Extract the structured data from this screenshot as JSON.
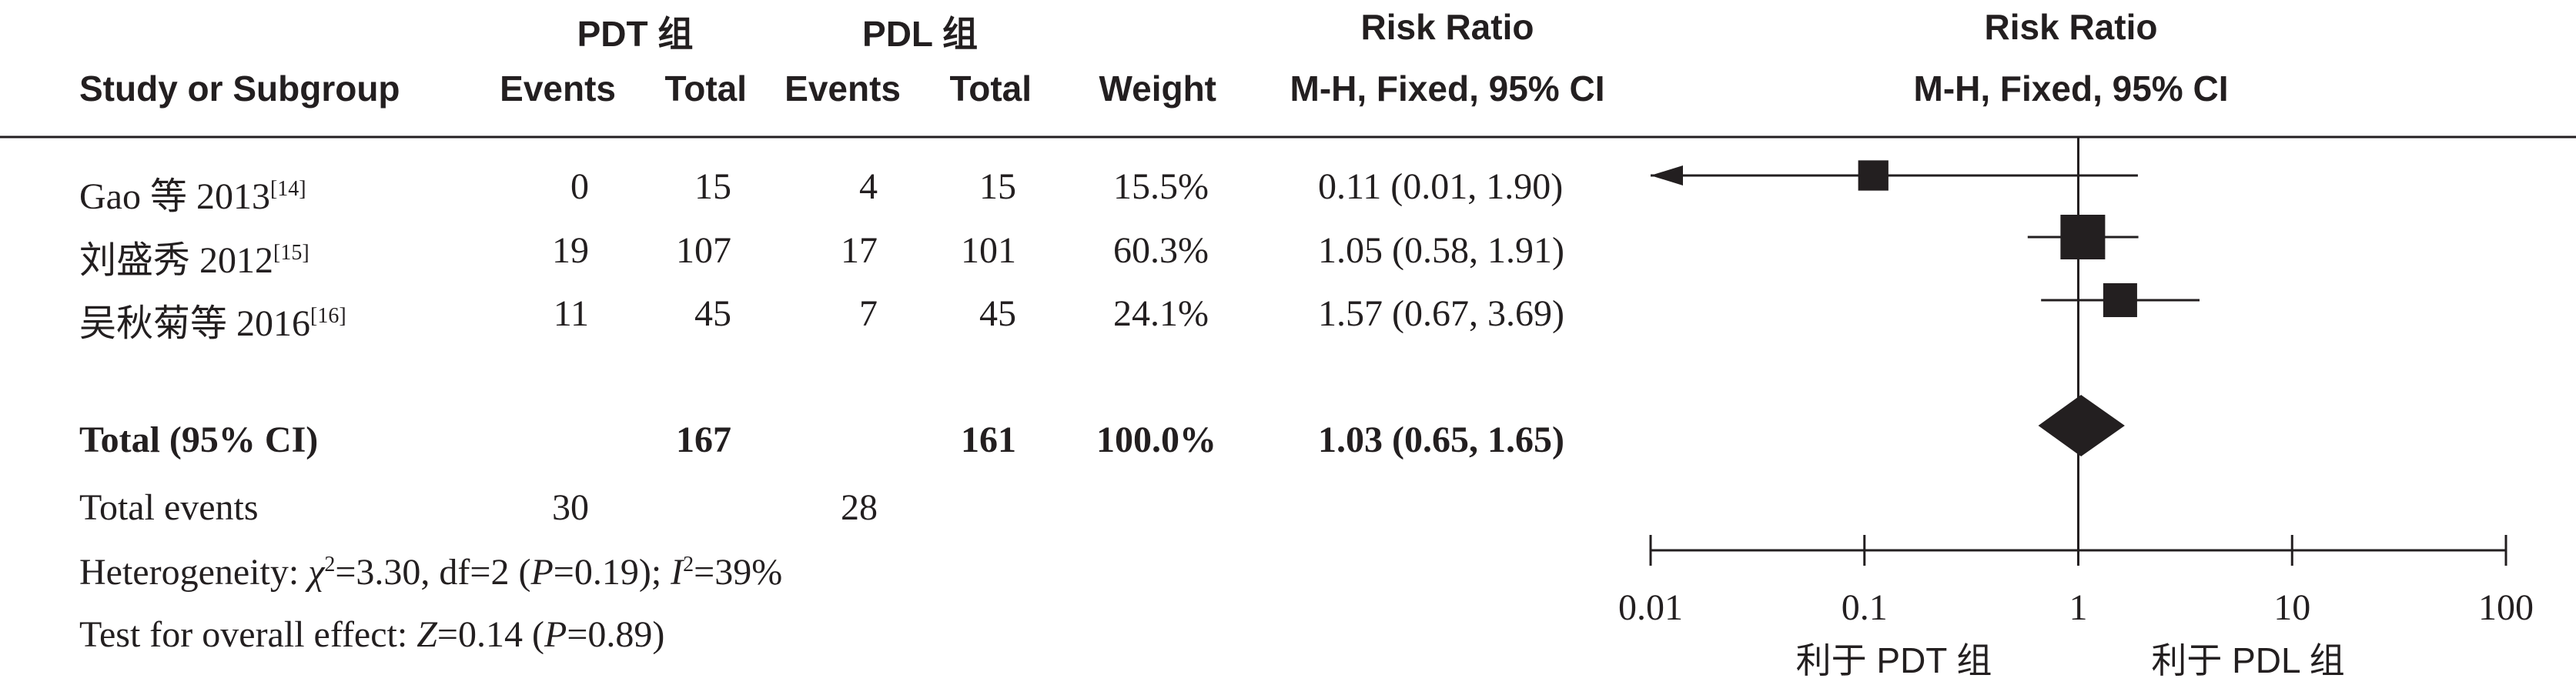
{
  "header": {
    "group1": "PDT 组",
    "group2": "PDL 组",
    "col_study": "Study or Subgroup",
    "col_events": "Events",
    "col_total": "Total",
    "col_weight": "Weight",
    "col_rr_title": "Risk Ratio",
    "col_rr_method": "M-H, Fixed, 95% CI",
    "plot_title": "Risk Ratio",
    "plot_method": "M-H, Fixed, 95% CI"
  },
  "studies": [
    {
      "name": "Gao 等 2013",
      "ref": "[14]",
      "e1": "0",
      "t1": "15",
      "e2": "4",
      "t2": "15",
      "weight": "15.5%",
      "ci": "0.11 (0.01, 1.90)"
    },
    {
      "name": "刘盛秀 2012",
      "ref": "[15]",
      "e1": "19",
      "t1": "107",
      "e2": "17",
      "t2": "101",
      "weight": "60.3%",
      "ci": "1.05 (0.58, 1.91)"
    },
    {
      "name": "吴秋菊等 2016",
      "ref": "[16]",
      "e1": "11",
      "t1": "45",
      "e2": "7",
      "t2": "45",
      "weight": "24.1%",
      "ci": "1.57 (0.67, 3.69)"
    }
  ],
  "total": {
    "label": "Total (95% CI)",
    "t1": "167",
    "t2": "161",
    "weight": "100.0%",
    "ci": "1.03 (0.65, 1.65)"
  },
  "total_events": {
    "label": "Total events",
    "e1": "30",
    "e2": "28"
  },
  "heterogeneity": {
    "prefix": "Heterogeneity: ",
    "chi_sym": "χ",
    "chi_val": "=3.30, df=2 (",
    "p_sym": "P",
    "p_val": "=0.19); ",
    "i_sym": "I",
    "i_val": "=39%"
  },
  "overall": {
    "prefix": "Test for overall effect: ",
    "z_sym": "Z",
    "z_val": "=0.14 (",
    "p_sym": "P",
    "p_val": "=0.89)"
  },
  "axis": {
    "favours_left": "利于 PDT 组",
    "favours_right": "利于 PDL 组"
  },
  "chart_data": {
    "type": "forest",
    "xscale": "log",
    "xlim": [
      0.01,
      100
    ],
    "ticks": [
      0.01,
      0.1,
      1,
      10,
      100
    ],
    "tick_labels": [
      "0.01",
      "0.1",
      "1",
      "10",
      "100"
    ],
    "null_line": 1,
    "points": [
      {
        "study": "Gao 等 2013",
        "rr": 0.11,
        "lo": 0.01,
        "hi": 1.9,
        "weight": 15.5
      },
      {
        "study": "刘盛秀 2012",
        "rr": 1.05,
        "lo": 0.58,
        "hi": 1.91,
        "weight": 60.3
      },
      {
        "study": "吴秋菊等 2016",
        "rr": 1.57,
        "lo": 0.67,
        "hi": 3.69,
        "weight": 24.1
      }
    ],
    "summary": {
      "rr": 1.03,
      "lo": 0.65,
      "hi": 1.65
    }
  }
}
